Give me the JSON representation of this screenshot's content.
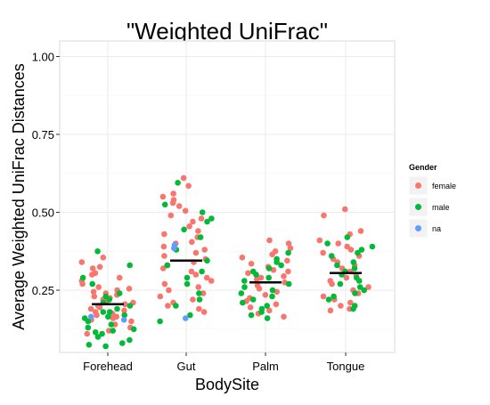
{
  "chart_data": {
    "type": "scatter",
    "title": "\"Weighted UniFrac\"",
    "xlabel": "BodySite",
    "ylabel": "Average Weighted UniFrac Distances",
    "categories": [
      "Forehead",
      "Gut",
      "Palm",
      "Tongue"
    ],
    "ylim": [
      0.05,
      1.05
    ],
    "yticks": [
      "0.25",
      "0.50",
      "0.75",
      "1.00"
    ],
    "ytick_values": [
      0.25,
      0.5,
      0.75,
      1.0
    ],
    "grid": true,
    "legend_position": "right",
    "legend": {
      "title": "Gender",
      "entries": [
        {
          "label": "female",
          "color": "#F8766D"
        },
        {
          "label": "male",
          "color": "#00BA38"
        },
        {
          "label": "na",
          "color": "#619CFF"
        }
      ]
    },
    "medians": [
      0.205,
      0.345,
      0.275,
      0.305
    ],
    "series": [
      {
        "name": "female",
        "color": "#F8766D",
        "points": [
          {
            "x": "Forehead",
            "y": 0.355
          },
          {
            "x": "Forehead",
            "y": 0.34
          },
          {
            "x": "Forehead",
            "y": 0.325
          },
          {
            "x": "Forehead",
            "y": 0.32
          },
          {
            "x": "Forehead",
            "y": 0.305
          },
          {
            "x": "Forehead",
            "y": 0.3
          },
          {
            "x": "Forehead",
            "y": 0.29
          },
          {
            "x": "Forehead",
            "y": 0.28
          },
          {
            "x": "Forehead",
            "y": 0.27
          },
          {
            "x": "Forehead",
            "y": 0.26
          },
          {
            "x": "Forehead",
            "y": 0.25
          },
          {
            "x": "Forehead",
            "y": 0.245
          },
          {
            "x": "Forehead",
            "y": 0.24
          },
          {
            "x": "Forehead",
            "y": 0.235
          },
          {
            "x": "Forehead",
            "y": 0.23
          },
          {
            "x": "Forehead",
            "y": 0.225
          },
          {
            "x": "Forehead",
            "y": 0.22
          },
          {
            "x": "Forehead",
            "y": 0.215
          },
          {
            "x": "Forehead",
            "y": 0.21
          },
          {
            "x": "Forehead",
            "y": 0.2
          },
          {
            "x": "Forehead",
            "y": 0.195
          },
          {
            "x": "Forehead",
            "y": 0.19
          },
          {
            "x": "Forehead",
            "y": 0.185
          },
          {
            "x": "Forehead",
            "y": 0.18
          },
          {
            "x": "Forehead",
            "y": 0.175
          },
          {
            "x": "Forehead",
            "y": 0.17
          },
          {
            "x": "Forehead",
            "y": 0.165
          },
          {
            "x": "Forehead",
            "y": 0.16
          },
          {
            "x": "Forehead",
            "y": 0.155
          },
          {
            "x": "Forehead",
            "y": 0.15
          },
          {
            "x": "Forehead",
            "y": 0.14
          },
          {
            "x": "Forehead",
            "y": 0.13
          },
          {
            "x": "Forehead",
            "y": 0.12
          },
          {
            "x": "Forehead",
            "y": 0.11
          },
          {
            "x": "Forehead",
            "y": 0.255
          },
          {
            "x": "Forehead",
            "y": 0.205
          },
          {
            "x": "Gut",
            "y": 0.61
          },
          {
            "x": "Gut",
            "y": 0.585
          },
          {
            "x": "Gut",
            "y": 0.56
          },
          {
            "x": "Gut",
            "y": 0.55
          },
          {
            "x": "Gut",
            "y": 0.54
          },
          {
            "x": "Gut",
            "y": 0.53
          },
          {
            "x": "Gut",
            "y": 0.52
          },
          {
            "x": "Gut",
            "y": 0.505
          },
          {
            "x": "Gut",
            "y": 0.49
          },
          {
            "x": "Gut",
            "y": 0.48
          },
          {
            "x": "Gut",
            "y": 0.47
          },
          {
            "x": "Gut",
            "y": 0.455
          },
          {
            "x": "Gut",
            "y": 0.44
          },
          {
            "x": "Gut",
            "y": 0.43
          },
          {
            "x": "Gut",
            "y": 0.42
          },
          {
            "x": "Gut",
            "y": 0.405
          },
          {
            "x": "Gut",
            "y": 0.4
          },
          {
            "x": "Gut",
            "y": 0.39
          },
          {
            "x": "Gut",
            "y": 0.38
          },
          {
            "x": "Gut",
            "y": 0.37
          },
          {
            "x": "Gut",
            "y": 0.36
          },
          {
            "x": "Gut",
            "y": 0.35
          },
          {
            "x": "Gut",
            "y": 0.34
          },
          {
            "x": "Gut",
            "y": 0.33
          },
          {
            "x": "Gut",
            "y": 0.32
          },
          {
            "x": "Gut",
            "y": 0.31
          },
          {
            "x": "Gut",
            "y": 0.3
          },
          {
            "x": "Gut",
            "y": 0.29
          },
          {
            "x": "Gut",
            "y": 0.28
          },
          {
            "x": "Gut",
            "y": 0.27
          },
          {
            "x": "Gut",
            "y": 0.26
          },
          {
            "x": "Gut",
            "y": 0.25
          },
          {
            "x": "Gut",
            "y": 0.24
          },
          {
            "x": "Gut",
            "y": 0.23
          },
          {
            "x": "Gut",
            "y": 0.22
          },
          {
            "x": "Gut",
            "y": 0.21
          },
          {
            "x": "Gut",
            "y": 0.2
          },
          {
            "x": "Gut",
            "y": 0.19
          },
          {
            "x": "Gut",
            "y": 0.18
          },
          {
            "x": "Palm",
            "y": 0.41
          },
          {
            "x": "Palm",
            "y": 0.4
          },
          {
            "x": "Palm",
            "y": 0.385
          },
          {
            "x": "Palm",
            "y": 0.375
          },
          {
            "x": "Palm",
            "y": 0.365
          },
          {
            "x": "Palm",
            "y": 0.355
          },
          {
            "x": "Palm",
            "y": 0.345
          },
          {
            "x": "Palm",
            "y": 0.335
          },
          {
            "x": "Palm",
            "y": 0.325
          },
          {
            "x": "Palm",
            "y": 0.315
          },
          {
            "x": "Palm",
            "y": 0.305
          },
          {
            "x": "Palm",
            "y": 0.295
          },
          {
            "x": "Palm",
            "y": 0.285
          },
          {
            "x": "Palm",
            "y": 0.275
          },
          {
            "x": "Palm",
            "y": 0.265
          },
          {
            "x": "Palm",
            "y": 0.255
          },
          {
            "x": "Palm",
            "y": 0.245
          },
          {
            "x": "Palm",
            "y": 0.235
          },
          {
            "x": "Palm",
            "y": 0.225
          },
          {
            "x": "Palm",
            "y": 0.215
          },
          {
            "x": "Palm",
            "y": 0.205
          },
          {
            "x": "Palm",
            "y": 0.195
          },
          {
            "x": "Palm",
            "y": 0.185
          },
          {
            "x": "Palm",
            "y": 0.175
          },
          {
            "x": "Palm",
            "y": 0.165
          },
          {
            "x": "Palm",
            "y": 0.29
          },
          {
            "x": "Palm",
            "y": 0.31
          },
          {
            "x": "Tongue",
            "y": 0.51
          },
          {
            "x": "Tongue",
            "y": 0.49
          },
          {
            "x": "Tongue",
            "y": 0.44
          },
          {
            "x": "Tongue",
            "y": 0.43
          },
          {
            "x": "Tongue",
            "y": 0.41
          },
          {
            "x": "Tongue",
            "y": 0.4
          },
          {
            "x": "Tongue",
            "y": 0.39
          },
          {
            "x": "Tongue",
            "y": 0.38
          },
          {
            "x": "Tongue",
            "y": 0.37
          },
          {
            "x": "Tongue",
            "y": 0.36
          },
          {
            "x": "Tongue",
            "y": 0.35
          },
          {
            "x": "Tongue",
            "y": 0.34
          },
          {
            "x": "Tongue",
            "y": 0.33
          },
          {
            "x": "Tongue",
            "y": 0.32
          },
          {
            "x": "Tongue",
            "y": 0.31
          },
          {
            "x": "Tongue",
            "y": 0.3
          },
          {
            "x": "Tongue",
            "y": 0.29
          },
          {
            "x": "Tongue",
            "y": 0.28
          },
          {
            "x": "Tongue",
            "y": 0.27
          },
          {
            "x": "Tongue",
            "y": 0.26
          },
          {
            "x": "Tongue",
            "y": 0.25
          },
          {
            "x": "Tongue",
            "y": 0.24
          },
          {
            "x": "Tongue",
            "y": 0.23
          },
          {
            "x": "Tongue",
            "y": 0.22
          },
          {
            "x": "Tongue",
            "y": 0.21
          },
          {
            "x": "Tongue",
            "y": 0.2
          },
          {
            "x": "Tongue",
            "y": 0.19
          },
          {
            "x": "Tongue",
            "y": 0.185
          }
        ]
      },
      {
        "name": "male",
        "color": "#00BA38",
        "points": [
          {
            "x": "Forehead",
            "y": 0.375
          },
          {
            "x": "Forehead",
            "y": 0.33
          },
          {
            "x": "Forehead",
            "y": 0.29
          },
          {
            "x": "Forehead",
            "y": 0.27
          },
          {
            "x": "Forehead",
            "y": 0.24
          },
          {
            "x": "Forehead",
            "y": 0.23
          },
          {
            "x": "Forehead",
            "y": 0.22
          },
          {
            "x": "Forehead",
            "y": 0.21
          },
          {
            "x": "Forehead",
            "y": 0.2
          },
          {
            "x": "Forehead",
            "y": 0.19
          },
          {
            "x": "Forehead",
            "y": 0.18
          },
          {
            "x": "Forehead",
            "y": 0.17
          },
          {
            "x": "Forehead",
            "y": 0.16
          },
          {
            "x": "Forehead",
            "y": 0.15
          },
          {
            "x": "Forehead",
            "y": 0.14
          },
          {
            "x": "Forehead",
            "y": 0.13
          },
          {
            "x": "Forehead",
            "y": 0.125
          },
          {
            "x": "Forehead",
            "y": 0.12
          },
          {
            "x": "Forehead",
            "y": 0.115
          },
          {
            "x": "Forehead",
            "y": 0.11
          },
          {
            "x": "Forehead",
            "y": 0.1
          },
          {
            "x": "Forehead",
            "y": 0.09
          },
          {
            "x": "Forehead",
            "y": 0.08
          },
          {
            "x": "Forehead",
            "y": 0.075
          },
          {
            "x": "Forehead",
            "y": 0.07
          },
          {
            "x": "Forehead",
            "y": 0.18
          },
          {
            "x": "Forehead",
            "y": 0.165
          },
          {
            "x": "Gut",
            "y": 0.595
          },
          {
            "x": "Gut",
            "y": 0.525
          },
          {
            "x": "Gut",
            "y": 0.5
          },
          {
            "x": "Gut",
            "y": 0.48
          },
          {
            "x": "Gut",
            "y": 0.47
          },
          {
            "x": "Gut",
            "y": 0.445
          },
          {
            "x": "Gut",
            "y": 0.42
          },
          {
            "x": "Gut",
            "y": 0.38
          },
          {
            "x": "Gut",
            "y": 0.345
          },
          {
            "x": "Gut",
            "y": 0.33
          },
          {
            "x": "Gut",
            "y": 0.31
          },
          {
            "x": "Gut",
            "y": 0.29
          },
          {
            "x": "Gut",
            "y": 0.27
          },
          {
            "x": "Gut",
            "y": 0.24
          },
          {
            "x": "Gut",
            "y": 0.22
          },
          {
            "x": "Gut",
            "y": 0.2
          },
          {
            "x": "Gut",
            "y": 0.17
          },
          {
            "x": "Gut",
            "y": 0.15
          },
          {
            "x": "Palm",
            "y": 0.37
          },
          {
            "x": "Palm",
            "y": 0.35
          },
          {
            "x": "Palm",
            "y": 0.34
          },
          {
            "x": "Palm",
            "y": 0.33
          },
          {
            "x": "Palm",
            "y": 0.32
          },
          {
            "x": "Palm",
            "y": 0.31
          },
          {
            "x": "Palm",
            "y": 0.3
          },
          {
            "x": "Palm",
            "y": 0.29
          },
          {
            "x": "Palm",
            "y": 0.28
          },
          {
            "x": "Palm",
            "y": 0.27
          },
          {
            "x": "Palm",
            "y": 0.26
          },
          {
            "x": "Palm",
            "y": 0.25
          },
          {
            "x": "Palm",
            "y": 0.24
          },
          {
            "x": "Palm",
            "y": 0.23
          },
          {
            "x": "Palm",
            "y": 0.22
          },
          {
            "x": "Palm",
            "y": 0.21
          },
          {
            "x": "Palm",
            "y": 0.2
          },
          {
            "x": "Palm",
            "y": 0.19
          },
          {
            "x": "Palm",
            "y": 0.18
          },
          {
            "x": "Palm",
            "y": 0.17
          },
          {
            "x": "Palm",
            "y": 0.16
          },
          {
            "x": "Tongue",
            "y": 0.42
          },
          {
            "x": "Tongue",
            "y": 0.4
          },
          {
            "x": "Tongue",
            "y": 0.39
          },
          {
            "x": "Tongue",
            "y": 0.38
          },
          {
            "x": "Tongue",
            "y": 0.37
          },
          {
            "x": "Tongue",
            "y": 0.36
          },
          {
            "x": "Tongue",
            "y": 0.34
          },
          {
            "x": "Tongue",
            "y": 0.33
          },
          {
            "x": "Tongue",
            "y": 0.32
          },
          {
            "x": "Tongue",
            "y": 0.31
          },
          {
            "x": "Tongue",
            "y": 0.3
          },
          {
            "x": "Tongue",
            "y": 0.29
          },
          {
            "x": "Tongue",
            "y": 0.28
          },
          {
            "x": "Tongue",
            "y": 0.27
          },
          {
            "x": "Tongue",
            "y": 0.26
          },
          {
            "x": "Tongue",
            "y": 0.25
          },
          {
            "x": "Tongue",
            "y": 0.24
          },
          {
            "x": "Tongue",
            "y": 0.23
          },
          {
            "x": "Tongue",
            "y": 0.22
          },
          {
            "x": "Tongue",
            "y": 0.2
          },
          {
            "x": "Tongue",
            "y": 0.19
          }
        ]
      },
      {
        "name": "na",
        "color": "#619CFF",
        "points": [
          {
            "x": "Forehead",
            "y": 0.165
          },
          {
            "x": "Forehead",
            "y": 0.155
          },
          {
            "x": "Gut",
            "y": 0.395
          },
          {
            "x": "Gut",
            "y": 0.385
          },
          {
            "x": "Gut",
            "y": 0.16
          }
        ]
      }
    ]
  }
}
